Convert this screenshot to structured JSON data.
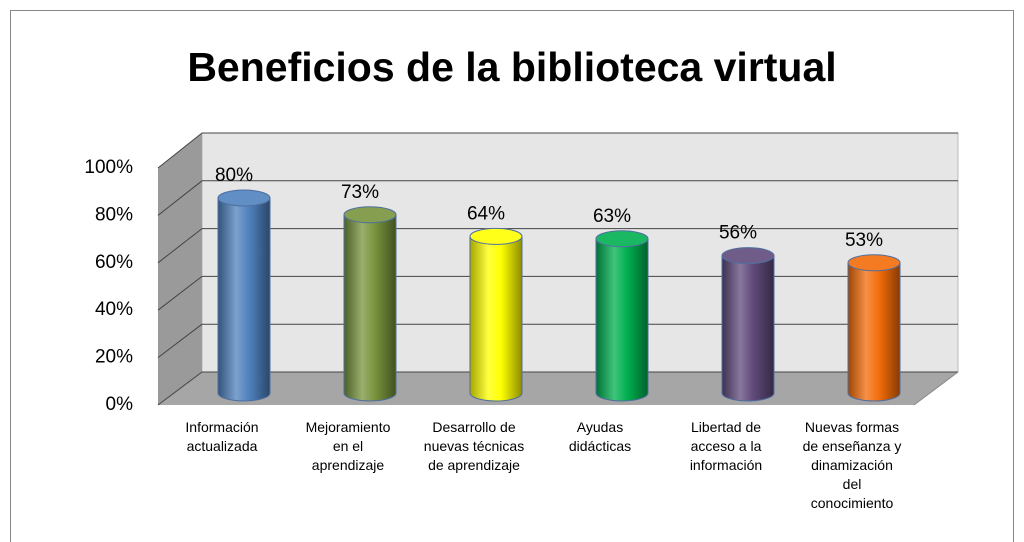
{
  "chart_data": {
    "type": "bar3d",
    "title": "Beneficios de la biblioteca virtual",
    "categories": [
      "Información\nactualizada",
      "Mejoramiento\nen  el\naprendizaje",
      "Desarrollo de\nnuevas técnicas\nde aprendizaje",
      "Ayudas\ndidácticas",
      "Libertad de\nacceso a la\ninformación",
      "Nuevas formas\nde enseñanza y\ndinamización\ndel\nconocimiento"
    ],
    "values": [
      80,
      73,
      64,
      63,
      56,
      53
    ],
    "value_labels": [
      "80%",
      "73%",
      "64%",
      "63%",
      "56%",
      "53%"
    ],
    "colors": [
      "#4f81bd",
      "#77933c",
      "#ffff00",
      "#00b050",
      "#604a7b",
      "#f36c09"
    ],
    "ylim": [
      0,
      100
    ],
    "yticks": [
      {
        "value": 0,
        "label": "0%"
      },
      {
        "value": 20,
        "label": "20%"
      },
      {
        "value": 40,
        "label": "40%"
      },
      {
        "value": 60,
        "label": "60%"
      },
      {
        "value": 80,
        "label": "80%"
      },
      {
        "value": 100,
        "label": "100%"
      }
    ],
    "grid": true
  }
}
